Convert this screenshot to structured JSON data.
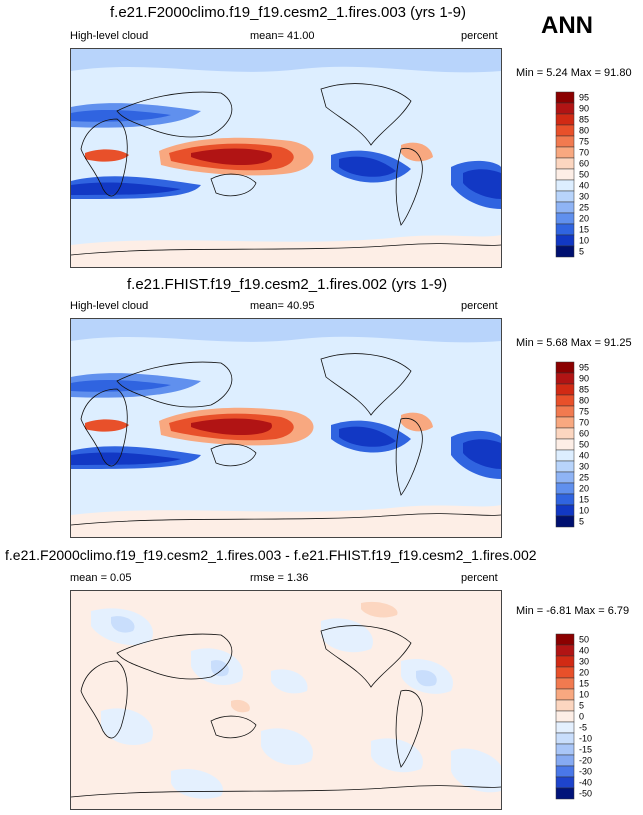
{
  "season_label": "ANN",
  "panels": [
    {
      "title": "f.e21.F2000climo.f19_f19.cesm2_1.fires.003 (yrs 1-9)",
      "left_label": "High-level cloud",
      "center_label": "mean=  41.00",
      "right_label": "percent",
      "range_label": "Min =   5.24  Max =  91.80",
      "colorbar_ticks": [
        "95",
        "90",
        "85",
        "80",
        "75",
        "70",
        "60",
        "50",
        "40",
        "30",
        "25",
        "20",
        "15",
        "10",
        "5"
      ]
    },
    {
      "title": "f.e21.FHIST.f19_f19.cesm2_1.fires.002 (yrs 1-9)",
      "left_label": "High-level cloud",
      "center_label": "mean=  40.95",
      "right_label": "percent",
      "range_label": "Min =   5.68  Max =  91.25",
      "colorbar_ticks": [
        "95",
        "90",
        "85",
        "80",
        "75",
        "70",
        "60",
        "50",
        "40",
        "30",
        "25",
        "20",
        "15",
        "10",
        "5"
      ]
    },
    {
      "title": "f.e21.F2000climo.f19_f19.cesm2_1.fires.003 - f.e21.FHIST.f19_f19.cesm2_1.fires.002",
      "left_label": "mean =   0.05",
      "center_label": "rmse =   1.36",
      "right_label": "percent",
      "range_label": "Min =  -6.81  Max =   6.79",
      "colorbar_ticks": [
        "50",
        "40",
        "30",
        "20",
        "15",
        "10",
        "5",
        "0",
        "-5",
        "-10",
        "-15",
        "-20",
        "-30",
        "-40",
        "-50"
      ]
    }
  ],
  "chart_data": [
    {
      "type": "heatmap",
      "title": "f.e21.F2000climo.f19_f19.cesm2_1.fires.003 (yrs 1-9)",
      "variable": "High-level cloud",
      "units": "percent",
      "mean": 41.0,
      "min": 5.24,
      "max": 91.8,
      "contour_levels": [
        5,
        10,
        15,
        20,
        25,
        30,
        40,
        50,
        60,
        70,
        75,
        80,
        85,
        90,
        95
      ]
    },
    {
      "type": "heatmap",
      "title": "f.e21.FHIST.f19_f19.cesm2_1.fires.002 (yrs 1-9)",
      "variable": "High-level cloud",
      "units": "percent",
      "mean": 40.95,
      "min": 5.68,
      "max": 91.25,
      "contour_levels": [
        5,
        10,
        15,
        20,
        25,
        30,
        40,
        50,
        60,
        70,
        75,
        80,
        85,
        90,
        95
      ]
    },
    {
      "type": "heatmap",
      "title": "f.e21.F2000climo.f19_f19.cesm2_1.fires.003 - f.e21.FHIST.f19_f19.cesm2_1.fires.002",
      "units": "percent",
      "mean": 0.05,
      "rmse": 1.36,
      "min": -6.81,
      "max": 6.79,
      "contour_levels": [
        -50,
        -40,
        -30,
        -20,
        -15,
        -10,
        -5,
        0,
        5,
        10,
        15,
        20,
        30,
        40,
        50
      ]
    }
  ],
  "colors": {
    "colorbar": [
      "#8b0000",
      "#b11414",
      "#d12a14",
      "#e8502a",
      "#f17a50",
      "#f8a880",
      "#fcd6c0",
      "#fdeee6",
      "#ddeeff",
      "#b8d4fb",
      "#8fb4f5",
      "#6090ee",
      "#3064e0",
      "#1238c4",
      "#001070"
    ],
    "diff_colorbar": [
      "#8b0000",
      "#b11414",
      "#d12a14",
      "#e8502a",
      "#f17a50",
      "#f8a880",
      "#fcd6c0",
      "#fdeee6",
      "#e4f0fe",
      "#c9defc",
      "#a9c6f8",
      "#86aaf2",
      "#4a78e8",
      "#1e44cc",
      "#00137a"
    ]
  }
}
